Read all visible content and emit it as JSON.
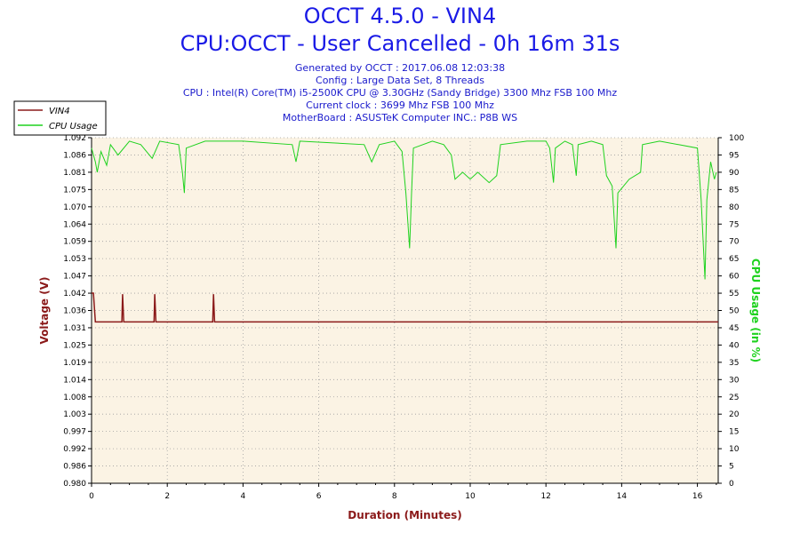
{
  "header": {
    "title": "OCCT 4.5.0 - VIN4",
    "subtitle": "CPU:OCCT - User Cancelled - 0h 16m 31s",
    "info_lines": [
      "Generated by OCCT : 2017.06.08 12:03:38",
      "Config : Large Data Set, 8 Threads",
      "CPU : Intel(R) Core(TM) i5-2500K CPU @ 3.30GHz (Sandy Bridge) 3300 Mhz FSB 100 Mhz",
      "Current clock : 3699 Mhz FSB 100 Mhz",
      "MotherBoard : ASUSTeK Computer INC.: P8B WS"
    ]
  },
  "colors": {
    "vin4": "#8b1a1a",
    "cpu_usage": "#1ed21e",
    "plot_bg": "#fbf3e4",
    "grid": "#a0a0a0",
    "title": "#1a1ae6"
  },
  "chart_data": {
    "type": "line",
    "title": "OCCT 4.5.0 - VIN4",
    "xlabel": "Duration (Minutes)",
    "ylabel": "Voltage (V)",
    "y2label": "CPU Usage (in %)",
    "xlim": [
      0,
      16.55
    ],
    "ylim": [
      0.98,
      1.092
    ],
    "y2lim": [
      0,
      100
    ],
    "x_ticks": [
      0,
      2,
      4,
      6,
      8,
      10,
      12,
      14,
      16
    ],
    "y_ticks": [
      "0.980",
      "0.986",
      "0.992",
      "0.997",
      "1.003",
      "1.008",
      "1.014",
      "1.019",
      "1.025",
      "1.031",
      "1.036",
      "1.042",
      "1.047",
      "1.053",
      "1.059",
      "1.064",
      "1.070",
      "1.075",
      "1.081",
      "1.086",
      "1.092"
    ],
    "y2_ticks": [
      0,
      5,
      10,
      15,
      20,
      25,
      30,
      35,
      40,
      45,
      50,
      55,
      60,
      65,
      70,
      75,
      80,
      85,
      90,
      95,
      100
    ],
    "grid": true,
    "legend_position": "top-left",
    "series": [
      {
        "name": "VIN4",
        "axis": "left",
        "points": [
          [
            0,
            1.0416
          ],
          [
            0.05,
            1.0416
          ],
          [
            0.1,
            1.0323
          ],
          [
            0.8,
            1.0323
          ],
          [
            0.82,
            1.0413
          ],
          [
            0.85,
            1.0323
          ],
          [
            1.65,
            1.0323
          ],
          [
            1.67,
            1.0413
          ],
          [
            1.7,
            1.0323
          ],
          [
            3.2,
            1.0323
          ],
          [
            3.22,
            1.0413
          ],
          [
            3.25,
            1.0323
          ],
          [
            16.55,
            1.0323
          ]
        ]
      },
      {
        "name": "CPU Usage",
        "axis": "right",
        "points": [
          [
            0,
            97
          ],
          [
            0.1,
            93
          ],
          [
            0.15,
            90
          ],
          [
            0.25,
            96
          ],
          [
            0.4,
            92
          ],
          [
            0.5,
            98
          ],
          [
            0.7,
            95
          ],
          [
            1,
            99
          ],
          [
            1.3,
            98
          ],
          [
            1.6,
            94
          ],
          [
            1.8,
            99
          ],
          [
            2.3,
            98
          ],
          [
            2.4,
            90
          ],
          [
            2.45,
            84
          ],
          [
            2.5,
            97
          ],
          [
            3,
            99
          ],
          [
            4,
            99
          ],
          [
            5.3,
            98
          ],
          [
            5.4,
            93
          ],
          [
            5.5,
            99
          ],
          [
            7.2,
            98
          ],
          [
            7.4,
            93
          ],
          [
            7.6,
            98
          ],
          [
            8,
            99
          ],
          [
            8.2,
            96
          ],
          [
            8.3,
            84
          ],
          [
            8.4,
            68
          ],
          [
            8.45,
            84
          ],
          [
            8.5,
            97
          ],
          [
            9,
            99
          ],
          [
            9.3,
            98
          ],
          [
            9.5,
            95
          ],
          [
            9.6,
            88
          ],
          [
            9.8,
            90
          ],
          [
            10,
            88
          ],
          [
            10.2,
            90
          ],
          [
            10.5,
            87
          ],
          [
            10.7,
            89
          ],
          [
            10.8,
            98
          ],
          [
            11.5,
            99
          ],
          [
            12,
            99
          ],
          [
            12.1,
            97
          ],
          [
            12.2,
            87
          ],
          [
            12.25,
            97
          ],
          [
            12.5,
            99
          ],
          [
            12.7,
            98
          ],
          [
            12.8,
            89
          ],
          [
            12.85,
            98
          ],
          [
            13.2,
            99
          ],
          [
            13.5,
            98
          ],
          [
            13.6,
            89
          ],
          [
            13.75,
            86
          ],
          [
            13.85,
            68
          ],
          [
            13.9,
            84
          ],
          [
            14.2,
            88
          ],
          [
            14.5,
            90
          ],
          [
            14.55,
            98
          ],
          [
            15,
            99
          ],
          [
            15.5,
            98
          ],
          [
            16,
            97
          ],
          [
            16.1,
            82
          ],
          [
            16.2,
            59
          ],
          [
            16.25,
            82
          ],
          [
            16.35,
            93
          ],
          [
            16.45,
            88
          ],
          [
            16.5,
            90
          ]
        ]
      }
    ]
  }
}
